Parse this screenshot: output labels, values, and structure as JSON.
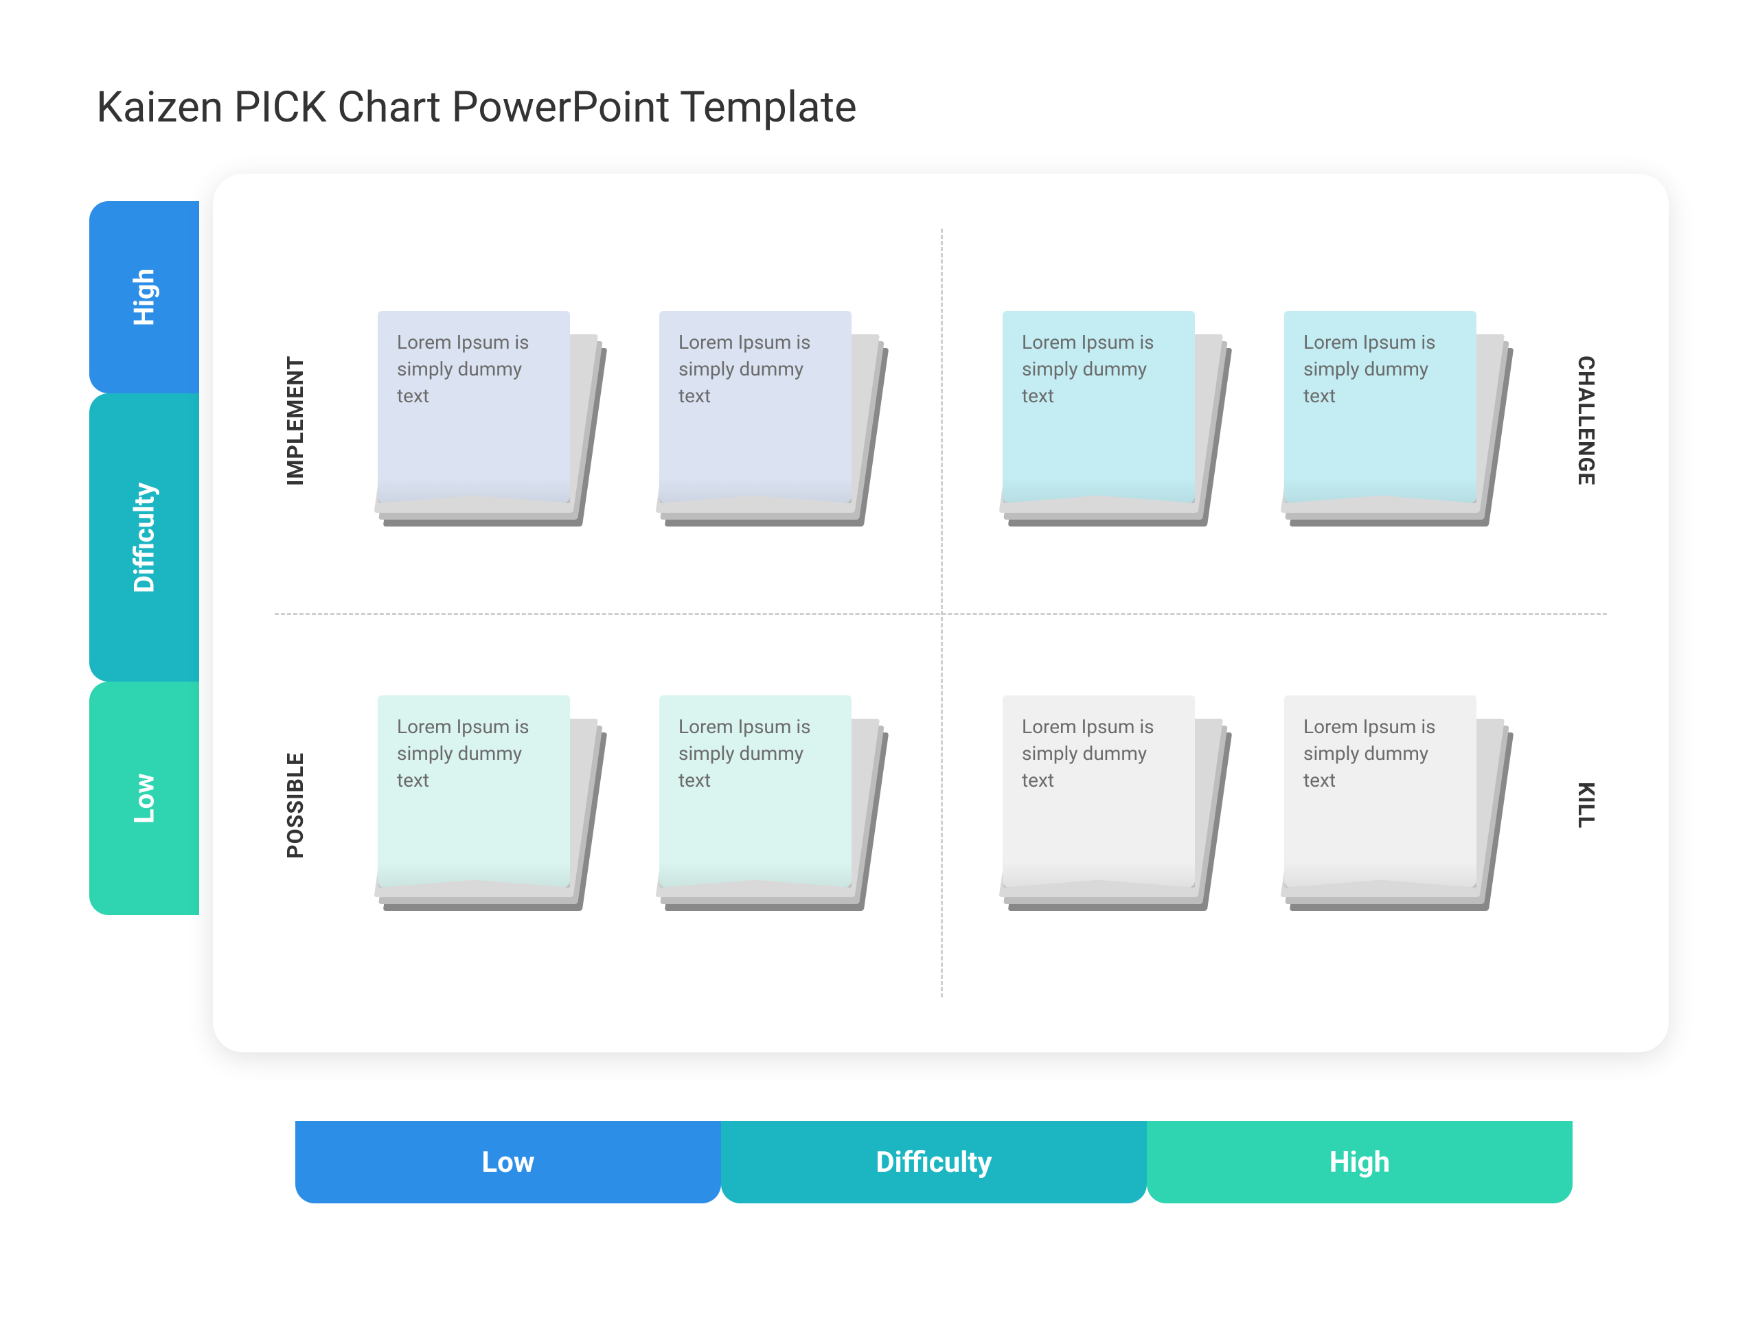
{
  "title": "Kaizen PICK Chart PowerPoint Template",
  "y_axis": {
    "high": {
      "label": "High",
      "color": "#2d8ee8"
    },
    "mid": {
      "label": "Difficulty",
      "color": "#1cb5c2"
    },
    "low": {
      "label": "Low",
      "color": "#2fd4b0"
    }
  },
  "x_axis": {
    "low": {
      "label": "Low",
      "color": "#2d8ee8"
    },
    "mid": {
      "label": "Difficulty",
      "color": "#1cb5c2"
    },
    "high": {
      "label": "High",
      "color": "#2fd4b0"
    }
  },
  "quadrants": {
    "implement": {
      "label": "IMPLEMENT",
      "note_color": "#dbe3f2",
      "notes": [
        "Lorem Ipsum is simply dummy text",
        "Lorem Ipsum is simply dummy text"
      ]
    },
    "challenge": {
      "label": "CHALLENGE",
      "note_color": "#c3edf3",
      "notes": [
        "Lorem Ipsum is simply dummy text",
        "Lorem Ipsum is simply dummy text"
      ]
    },
    "possible": {
      "label": "POSSIBLE",
      "note_color": "#daf4ef",
      "notes": [
        "Lorem Ipsum is simply dummy text",
        "Lorem Ipsum is simply dummy text"
      ]
    },
    "kill": {
      "label": "KILL",
      "note_color": "#f0f0f0",
      "notes": [
        "Lorem Ipsum is simply dummy text",
        "Lorem Ipsum is simply dummy text"
      ]
    }
  },
  "style": {
    "background": "#ffffff",
    "card_background": "#ffffff",
    "divider_color": "#cfcfcf",
    "title_color": "#333333",
    "quad_label_color": "#333333",
    "note_text_color": "#6b6b6b",
    "title_fontsize": 62,
    "axis_fontsize": 42,
    "quad_label_fontsize": 32,
    "note_fontsize": 28
  }
}
